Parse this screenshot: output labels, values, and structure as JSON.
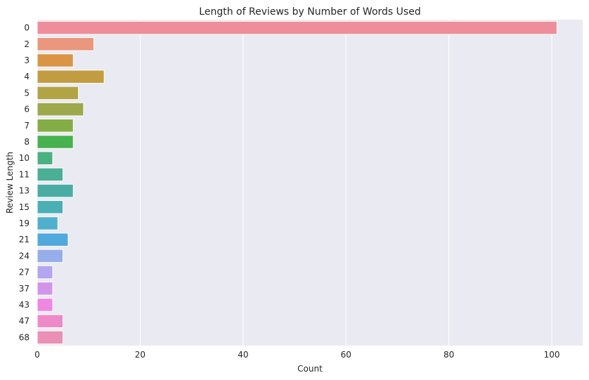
{
  "chart_data": {
    "type": "bar",
    "orientation": "horizontal",
    "title": "Length of Reviews by Number of Words Used",
    "xlabel": "Count",
    "ylabel": "Review Length",
    "xlim": [
      0,
      106
    ],
    "xticks": [
      0,
      20,
      40,
      60,
      80,
      100
    ],
    "grid": true,
    "categories": [
      "0",
      "2",
      "3",
      "4",
      "5",
      "6",
      "7",
      "8",
      "10",
      "11",
      "13",
      "15",
      "19",
      "21",
      "24",
      "27",
      "37",
      "43",
      "47",
      "68"
    ],
    "values": [
      101,
      11,
      7,
      13,
      8,
      9,
      7,
      7,
      3,
      5,
      7,
      5,
      4,
      6,
      5,
      3,
      3,
      3,
      5,
      5
    ],
    "colors": [
      "#ee8e9a",
      "#ea977e",
      "#d99446",
      "#c29c40",
      "#b2a444",
      "#9ea84d",
      "#85ad45",
      "#47b24f",
      "#4ab180",
      "#4aaf94",
      "#49ada4",
      "#4bb0b5",
      "#4fb0cd",
      "#4fa9dd",
      "#97aeea",
      "#b3a5ef",
      "#d294ea",
      "#ee86e2",
      "#ee8ac8",
      "#ea90b7"
    ],
    "background": "#eaeaf2"
  }
}
